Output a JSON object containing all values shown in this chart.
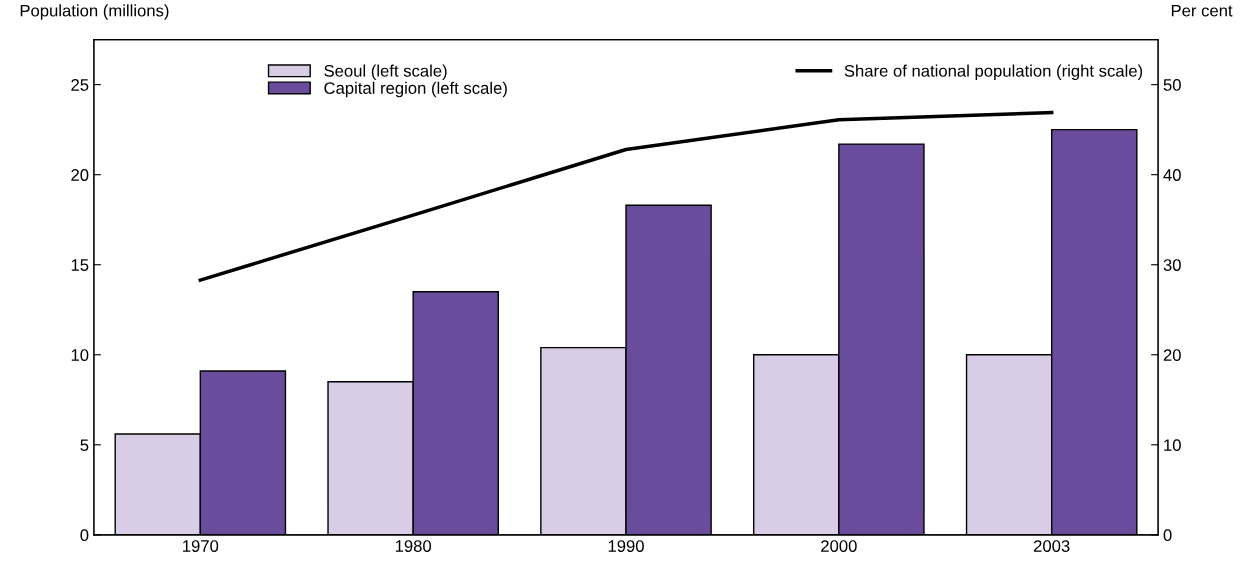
{
  "chart_data": {
    "type": "bar",
    "ylabel": "Population (millions)",
    "y2label": "Per cent",
    "categories": [
      "1970",
      "1980",
      "1990",
      "2000",
      "2003"
    ],
    "series": [
      {
        "name": "Seoul (left scale)",
        "color": "#d9cce6",
        "values": [
          5.6,
          8.5,
          10.4,
          10.0,
          10.0
        ]
      },
      {
        "name": "Capital region (left scale)",
        "color": "#6a4c9c",
        "values": [
          9.1,
          13.5,
          18.3,
          21.7,
          22.5
        ]
      },
      {
        "name": "Share of national population (right scale)",
        "type": "line",
        "axis": "y2",
        "color": "#000000",
        "values": [
          28.3,
          35.5,
          42.8,
          46.1,
          46.9
        ]
      }
    ],
    "ylim": [
      0,
      27.5
    ],
    "yticks": [
      0,
      5,
      10,
      15,
      20,
      25
    ],
    "y2lim": [
      0,
      55
    ],
    "y2ticks": [
      0,
      10,
      20,
      30,
      40,
      50
    ],
    "grid": false,
    "legend": "top",
    "line_style": "solid",
    "marker": "none"
  }
}
